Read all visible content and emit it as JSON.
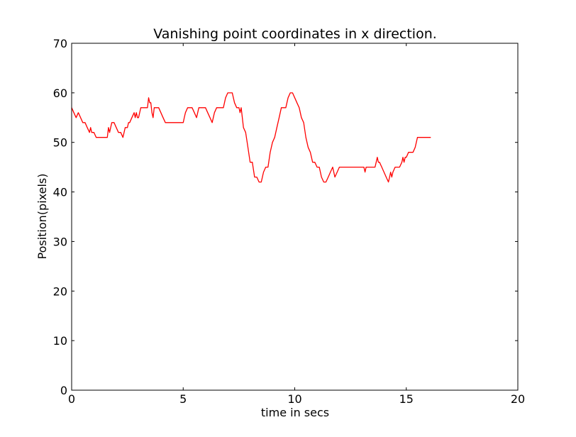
{
  "chart_data": {
    "type": "line",
    "title": "Vanishing point coordinates in x direction.",
    "xlabel": "time in secs",
    "ylabel": "Position(pixels)",
    "xlim": [
      0,
      20
    ],
    "ylim": [
      0,
      70
    ],
    "xticks": [
      0,
      5,
      10,
      15,
      20
    ],
    "yticks": [
      0,
      10,
      20,
      30,
      40,
      50,
      60,
      70
    ],
    "grid": false,
    "legend": "none",
    "series": [
      {
        "color": "#ff0000",
        "x": [
          0.0,
          0.1,
          0.2,
          0.3,
          0.4,
          0.5,
          0.6,
          0.7,
          0.8,
          0.85,
          0.9,
          1.0,
          1.1,
          1.2,
          1.3,
          1.4,
          1.5,
          1.6,
          1.65,
          1.7,
          1.75,
          1.8,
          1.9,
          2.0,
          2.1,
          2.2,
          2.3,
          2.4,
          2.5,
          2.55,
          2.6,
          2.7,
          2.8,
          2.85,
          2.9,
          2.95,
          3.0,
          3.05,
          3.1,
          3.2,
          3.3,
          3.4,
          3.45,
          3.5,
          3.55,
          3.6,
          3.65,
          3.7,
          3.8,
          3.9,
          4.0,
          4.1,
          4.2,
          4.3,
          4.5,
          4.7,
          4.9,
          5.0,
          5.05,
          5.1,
          5.2,
          5.3,
          5.4,
          5.5,
          5.6,
          5.7,
          5.8,
          5.9,
          6.0,
          6.1,
          6.2,
          6.3,
          6.4,
          6.5,
          6.6,
          6.7,
          6.8,
          6.9,
          7.0,
          7.1,
          7.2,
          7.3,
          7.4,
          7.5,
          7.55,
          7.6,
          7.65,
          7.7,
          7.8,
          7.9,
          8.0,
          8.1,
          8.2,
          8.3,
          8.4,
          8.5,
          8.6,
          8.7,
          8.8,
          8.9,
          9.0,
          9.1,
          9.2,
          9.3,
          9.4,
          9.5,
          9.6,
          9.7,
          9.8,
          9.9,
          10.0,
          10.1,
          10.2,
          10.3,
          10.4,
          10.5,
          10.6,
          10.7,
          10.8,
          10.9,
          11.0,
          11.1,
          11.2,
          11.3,
          11.4,
          11.5,
          11.6,
          11.7,
          11.8,
          11.9,
          12.0,
          12.1,
          12.2,
          12.3,
          12.4,
          12.6,
          12.8,
          13.0,
          13.1,
          13.15,
          13.2,
          13.4,
          13.6,
          13.65,
          13.7,
          13.75,
          13.8,
          13.9,
          14.0,
          14.1,
          14.2,
          14.25,
          14.3,
          14.35,
          14.4,
          14.5,
          14.6,
          14.7,
          14.8,
          14.85,
          14.9,
          14.95,
          15.0,
          15.1,
          15.2,
          15.3,
          15.4,
          15.45,
          15.5,
          15.6,
          15.8,
          16.0,
          16.1
        ],
        "y": [
          57,
          56,
          55,
          56,
          55,
          54,
          54,
          53,
          52,
          53,
          52,
          52,
          51,
          51,
          51,
          51,
          51,
          51,
          53,
          52,
          53,
          54,
          54,
          53,
          52,
          52,
          51,
          53,
          53,
          54,
          54,
          55,
          56,
          55,
          56,
          55,
          55,
          56,
          57,
          57,
          57,
          57,
          59,
          58,
          58,
          56,
          55,
          57,
          57,
          57,
          56,
          55,
          54,
          54,
          54,
          54,
          54,
          54,
          55,
          56,
          57,
          57,
          57,
          56,
          55,
          57,
          57,
          57,
          57,
          56,
          55,
          54,
          56,
          57,
          57,
          57,
          57,
          59,
          60,
          60,
          60,
          58,
          57,
          57,
          56,
          57,
          55,
          53,
          52,
          49,
          46,
          46,
          43,
          43,
          42,
          42,
          44,
          45,
          45,
          48,
          50,
          51,
          53,
          55,
          57,
          57,
          57,
          59,
          60,
          60,
          59,
          58,
          57,
          55,
          54,
          51,
          49,
          48,
          46,
          46,
          45,
          45,
          43,
          42,
          42,
          43,
          44,
          45,
          43,
          44,
          45,
          45,
          45,
          45,
          45,
          45,
          45,
          45,
          45,
          44,
          45,
          45,
          45,
          46,
          47,
          46,
          46,
          45,
          44,
          43,
          42,
          43,
          44,
          43,
          44,
          45,
          45,
          45,
          46,
          47,
          46,
          47,
          47,
          48,
          48,
          48,
          49,
          50,
          51,
          51,
          51,
          51,
          51
        ]
      }
    ]
  }
}
